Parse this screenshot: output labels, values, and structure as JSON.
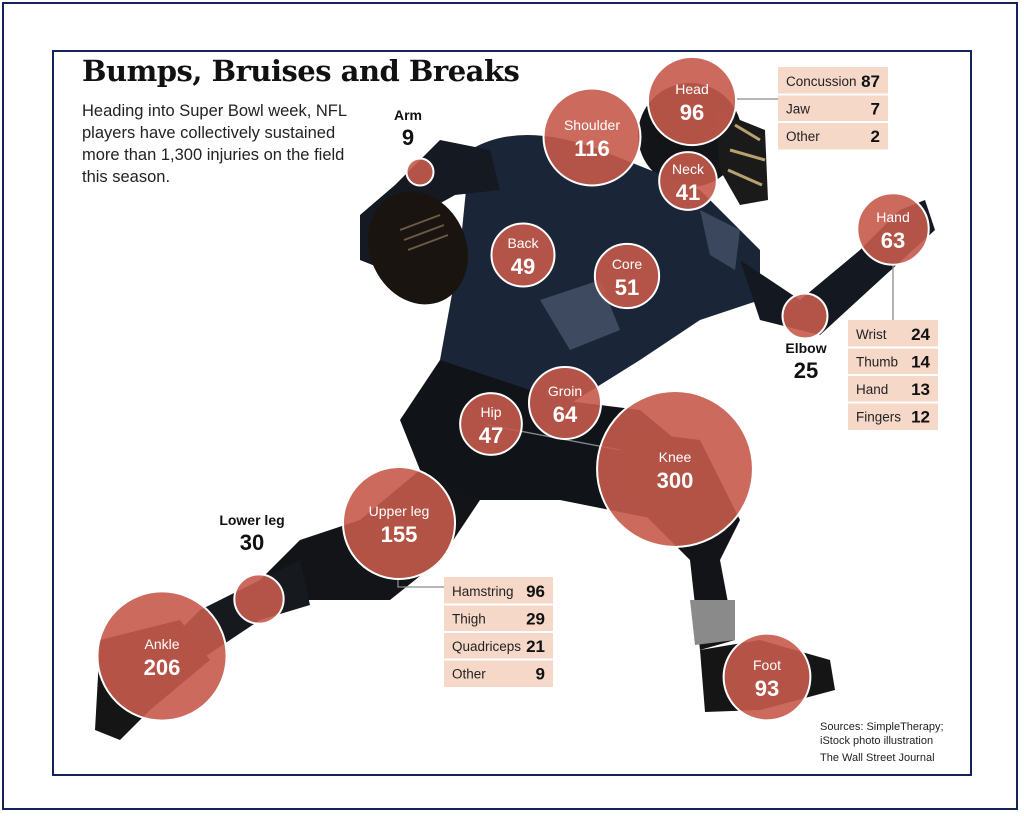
{
  "title": "Bumps, Bruises and Breaks",
  "subtitle": "Heading into Super Bowl week, NFL players have collectively sustained more than 1,300 injuries on the field this season.",
  "sources": "Sources: SimpleTherapy; iStock photo illustration",
  "credit": "The Wall Street Journal",
  "colors": {
    "bubble": "#c55a4b",
    "bubble_stroke": "#ffffff",
    "breakdown_bg": "#f6d8c9",
    "player": "#131820",
    "jersey": "#1c2a44"
  },
  "chart_data": {
    "type": "bubble",
    "unit": "injuries",
    "series": [
      {
        "label": "Head",
        "value": 96
      },
      {
        "label": "Shoulder",
        "value": 116
      },
      {
        "label": "Neck",
        "value": 41
      },
      {
        "label": "Arm",
        "value": 9
      },
      {
        "label": "Back",
        "value": 49
      },
      {
        "label": "Core",
        "value": 51
      },
      {
        "label": "Hand",
        "value": 63
      },
      {
        "label": "Elbow",
        "value": 25
      },
      {
        "label": "Groin",
        "value": 64
      },
      {
        "label": "Hip",
        "value": 47
      },
      {
        "label": "Knee",
        "value": 300
      },
      {
        "label": "Upper leg",
        "value": 155
      },
      {
        "label": "Lower leg",
        "value": 30
      },
      {
        "label": "Ankle",
        "value": 206
      },
      {
        "label": "Foot",
        "value": 93
      }
    ],
    "breakdowns": [
      {
        "parent": "Head",
        "items": [
          {
            "label": "Concussion",
            "value": 87
          },
          {
            "label": "Jaw",
            "value": 7
          },
          {
            "label": "Other",
            "value": 2
          }
        ]
      },
      {
        "parent": "Hand",
        "items": [
          {
            "label": "Wrist",
            "value": 24
          },
          {
            "label": "Thumb",
            "value": 14
          },
          {
            "label": "Hand",
            "value": 13
          },
          {
            "label": "Fingers",
            "value": 12
          }
        ]
      },
      {
        "parent": "Upper leg",
        "items": [
          {
            "label": "Hamstring",
            "value": 96
          },
          {
            "label": "Thigh",
            "value": 29
          },
          {
            "label": "Quadriceps",
            "value": 21
          },
          {
            "label": "Other",
            "value": 9
          }
        ]
      }
    ]
  }
}
